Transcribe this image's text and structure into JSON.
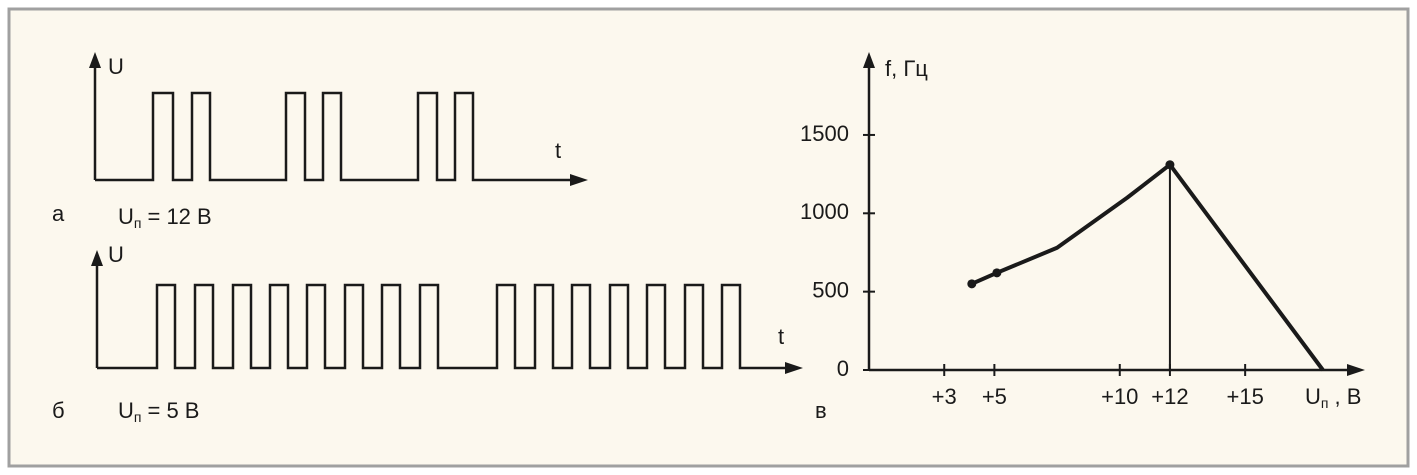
{
  "panels": {
    "a": {
      "label": "а",
      "axis_y": "U",
      "axis_x": "t",
      "caption": {
        "symbol": "U",
        "sub": "п",
        "text": "= 12 В"
      }
    },
    "b": {
      "label": "б",
      "axis_y": "U",
      "axis_x": "t",
      "caption": {
        "symbol": "U",
        "sub": "п",
        "text": "= 5 В"
      }
    }
  },
  "chart_data": {
    "type": "line",
    "panel_label": "в",
    "y_label": "f, Гц",
    "x_label": {
      "symbol": "U",
      "sub": "п",
      "text": ", В"
    },
    "x": [
      4.1,
      5.1,
      7.5,
      10.3,
      12,
      18.1
    ],
    "series": [
      {
        "color": "#1a1a1a",
        "values": [
          550,
          620,
          780,
          1100,
          1310,
          0
        ]
      }
    ],
    "markers_at": [
      0,
      1,
      4
    ],
    "drop_line_at": 4,
    "xlim": [
      0,
      19.5
    ],
    "xticks": [
      {
        "value": 3,
        "label": "+3"
      },
      {
        "value": 5,
        "label": "+5"
      },
      {
        "value": 10,
        "label": "+10"
      },
      {
        "value": 12,
        "label": "+12"
      },
      {
        "value": 15,
        "label": "+15"
      }
    ],
    "ylim": [
      0,
      2000
    ],
    "yticks": [
      0,
      500,
      1000,
      1500
    ]
  }
}
